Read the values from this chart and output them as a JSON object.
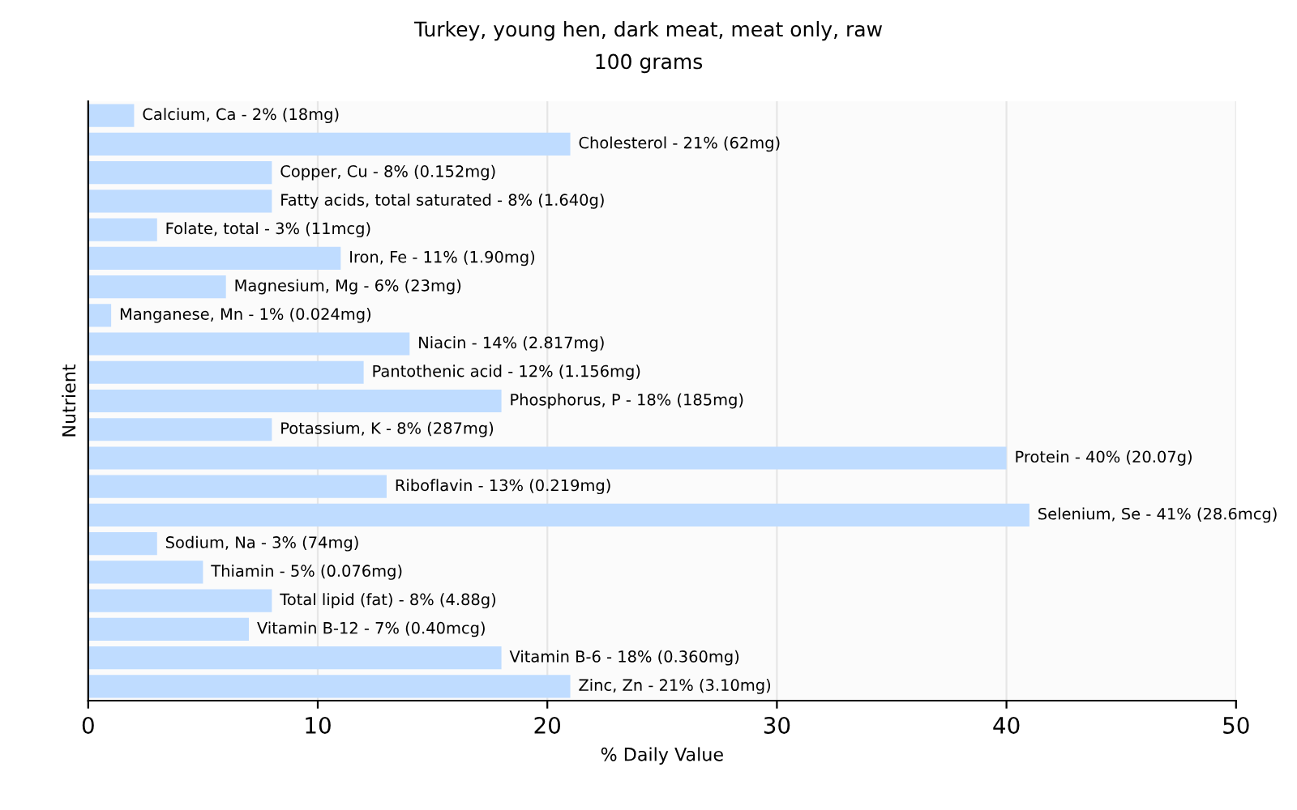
{
  "chart_data": {
    "type": "bar",
    "orientation": "horizontal",
    "title": "Turkey, young hen, dark meat, meat only, raw",
    "subtitle": "100 grams",
    "xlabel": "% Daily Value",
    "ylabel": "Nutrient",
    "categories": [
      null,
      null,
      null,
      null,
      null,
      null,
      null,
      null,
      null,
      null,
      null,
      null,
      null,
      null,
      null,
      null,
      null,
      null,
      null,
      null,
      null
    ],
    "values": [
      2,
      21,
      8,
      8,
      3,
      11,
      6,
      1,
      14,
      12,
      18,
      8,
      40,
      13,
      41,
      3,
      5,
      8,
      7,
      18,
      21
    ],
    "annotations": [
      {
        "text": "Calcium, Ca - 2% (18mg)",
        "x": 2
      },
      {
        "text": "Cholesterol - 21% (62mg)",
        "x": 21
      },
      {
        "text": "Copper, Cu - 8% (0.152mg)",
        "x": 8
      },
      {
        "text": "Fatty acids, total saturated - 8% (1.640g)",
        "x": 8
      },
      {
        "text": "Folate, total - 3% (11mcg)",
        "x": 3
      },
      {
        "text": "Iron, Fe - 11% (1.90mg)",
        "x": 11
      },
      {
        "text": "Magnesium, Mg - 6% (23mg)",
        "x": 6
      },
      {
        "text": "Manganese, Mn - 1% (0.024mg)",
        "x": 1
      },
      {
        "text": "Niacin - 14% (2.817mg)",
        "x": 14
      },
      {
        "text": "Pantothenic acid - 12% (1.156mg)",
        "x": 12
      },
      {
        "text": "Phosphorus, P - 18% (185mg)",
        "x": 18
      },
      {
        "text": "Potassium, K - 8% (287mg)",
        "x": 8
      },
      {
        "text": "Protein - 40% (20.07g)",
        "x": 40
      },
      {
        "text": "Riboflavin - 13% (0.219mg)",
        "x": 13
      },
      {
        "text": "Selenium, Se - 41% (28.6mcg)",
        "x": 41
      },
      {
        "text": "Sodium, Na - 3% (74mg)",
        "x": 3
      },
      {
        "text": "Thiamin - 5% (0.076mg)",
        "x": 5
      },
      {
        "text": "Total lipid (fat) - 8% (4.88g)",
        "x": 8
      },
      {
        "text": "Vitamin B-12 - 7% (0.40mcg)",
        "x": 7
      },
      {
        "text": "Vitamin B-6 - 18% (0.360mg)",
        "x": 18
      },
      {
        "text": "Zinc, Zn - 21% (3.10mg)",
        "x": 21
      }
    ],
    "color": "#bfdcff",
    "xlim": [
      0,
      50
    ],
    "xticks": [
      0,
      10,
      20,
      30,
      40,
      50
    ],
    "grid": "x",
    "tick_labels": "x"
  }
}
